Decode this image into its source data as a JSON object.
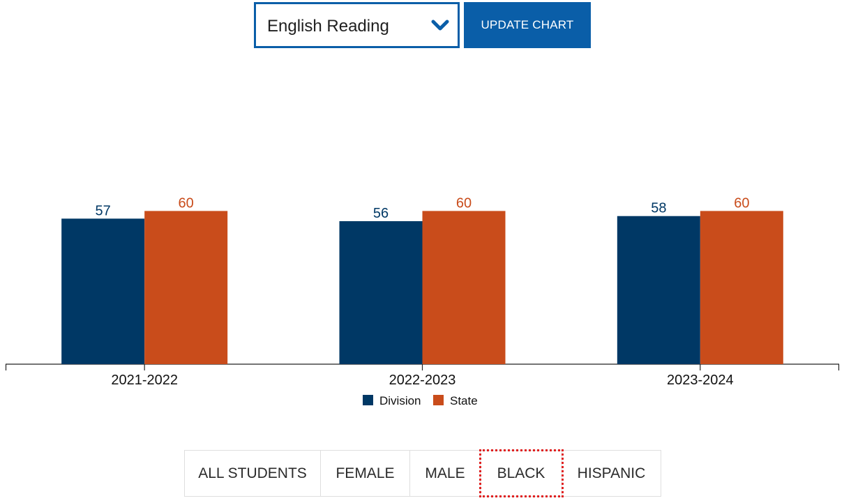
{
  "controls": {
    "subject_select": {
      "selected": "English Reading"
    },
    "update_button_label": "UPDATE CHART"
  },
  "tabs": [
    {
      "label": "ALL STUDENTS",
      "width": 195
    },
    {
      "label": "FEMALE",
      "width": 128
    },
    {
      "label": "MALE",
      "width": 101
    },
    {
      "label": "BLACK",
      "width": 117,
      "focused": true
    },
    {
      "label": "HISPANIC",
      "width": 141
    }
  ],
  "colors": {
    "division": "#003865",
    "state": "#c94c1b",
    "accent": "#0a5ea8"
  },
  "chart_data": {
    "type": "bar",
    "categories": [
      "2021-2022",
      "2022-2023",
      "2023-2024"
    ],
    "series": [
      {
        "name": "Division",
        "values": [
          57,
          56,
          58
        ]
      },
      {
        "name": "State",
        "values": [
          60,
          60,
          60
        ]
      }
    ],
    "ylim": [
      0,
      100
    ],
    "legend": "bottom",
    "grid": false,
    "data_labels": true
  }
}
